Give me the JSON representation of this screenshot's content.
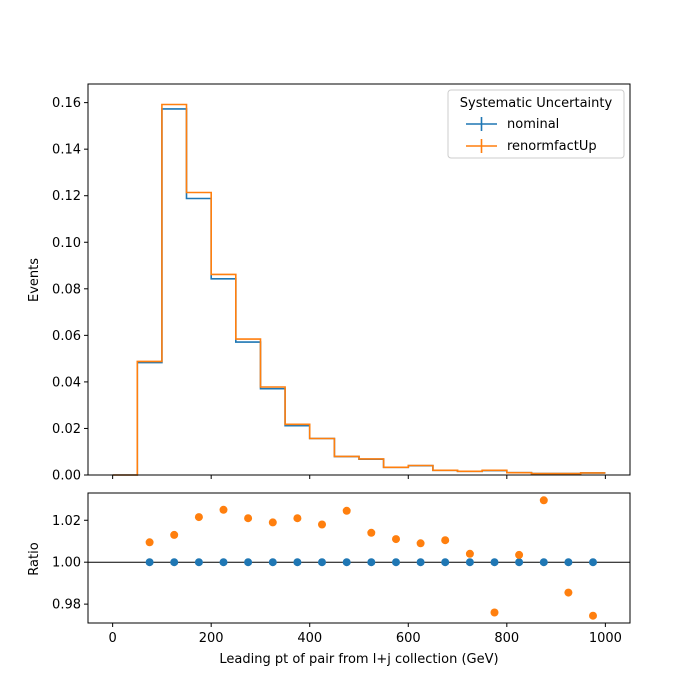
{
  "chart_data": {
    "type": "line",
    "xlabel": "Leading pt of pair from l+j collection (GeV)",
    "xlim": [
      -50,
      1050
    ],
    "xticks": [
      0,
      200,
      400,
      600,
      800,
      1000
    ],
    "bin_edges": [
      0,
      50,
      100,
      150,
      200,
      250,
      300,
      350,
      400,
      450,
      500,
      550,
      600,
      650,
      700,
      750,
      800,
      850,
      900,
      950,
      1000
    ],
    "grid": false,
    "top_panel": {
      "ylabel": "Events",
      "ylim": [
        0,
        0.168
      ],
      "yticks": [
        "0.00",
        "0.02",
        "0.04",
        "0.06",
        "0.08",
        "0.10",
        "0.12",
        "0.14",
        "0.16"
      ],
      "style": "step histogram",
      "series": [
        {
          "name": "nominal",
          "color": "#1f77b4",
          "values": [
            0.0,
            0.0483,
            0.1573,
            0.1188,
            0.0843,
            0.0571,
            0.0371,
            0.0212,
            0.0157,
            0.0079,
            0.0068,
            0.0033,
            0.004,
            0.002,
            0.0016,
            0.0019,
            0.001,
            0.0006,
            0.0006,
            0.0009
          ]
        },
        {
          "name": "renormfactUp",
          "color": "#ff7f0e",
          "values": [
            0.0,
            0.0488,
            0.1592,
            0.1214,
            0.0862,
            0.0584,
            0.0378,
            0.0218,
            0.0157,
            0.008,
            0.0069,
            0.0033,
            0.0041,
            0.002,
            0.0016,
            0.002,
            0.001,
            0.0006,
            0.0006,
            0.0009
          ]
        }
      ],
      "legend": {
        "title": "Systematic Uncertainty",
        "placement": "upper right"
      }
    },
    "bottom_panel": {
      "ylabel": "Ratio",
      "ylim": [
        0.971,
        1.033
      ],
      "yticks": [
        "0.98",
        "1.00",
        "1.02"
      ],
      "reference_line": 1.0,
      "style": "scatter",
      "x": [
        75,
        125,
        175,
        225,
        275,
        325,
        375,
        425,
        475,
        525,
        575,
        625,
        675,
        725,
        775,
        825,
        875,
        925,
        975
      ],
      "series": [
        {
          "name": "nominal",
          "color": "#1f77b4",
          "values": [
            1.0,
            1.0,
            1.0,
            1.0,
            1.0,
            1.0,
            1.0,
            1.0,
            1.0,
            1.0,
            1.0,
            1.0,
            1.0,
            1.0,
            1.0,
            1.0,
            1.0,
            1.0,
            1.0
          ]
        },
        {
          "name": "renormfactUp",
          "color": "#ff7f0e",
          "values": [
            1.0095,
            1.013,
            1.0215,
            1.025,
            1.021,
            1.019,
            1.021,
            1.018,
            1.0245,
            1.014,
            1.011,
            1.009,
            1.0105,
            1.004,
            0.976,
            1.0035,
            1.0295,
            0.9855,
            0.9745
          ]
        }
      ]
    }
  }
}
